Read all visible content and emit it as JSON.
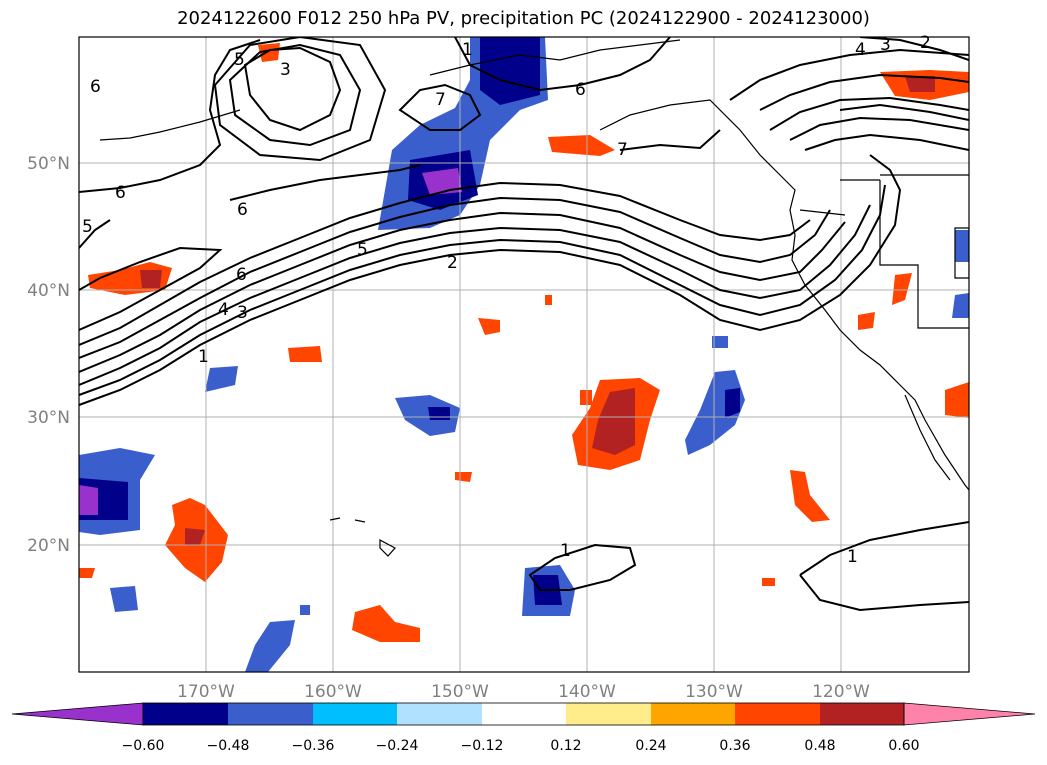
{
  "title": "2024122600 F012 250 hPa PV, precipitation PC (2024122900 - 2024123000)",
  "lat_labels": [
    "50°N",
    "40°N",
    "30°N",
    "20°N"
  ],
  "lon_labels": [
    "170°W",
    "160°W",
    "150°W",
    "140°W",
    "130°W",
    "120°W"
  ],
  "colorbar": {
    "colors": [
      "#9932cc",
      "#00008b",
      "#3a5fcd",
      "#00bfff",
      "#b0e2ff",
      "#ffffff",
      "#ffec8b",
      "#ffa500",
      "#ff4500",
      "#b22222",
      "#ff82ab"
    ],
    "tick_labels": [
      "−0.60",
      "−0.48",
      "−0.36",
      "−0.24",
      "−0.12",
      "0.12",
      "0.24",
      "0.36",
      "0.48",
      "0.60"
    ]
  },
  "contour_labels": [
    "6",
    "5",
    "3",
    "7",
    "1",
    "6",
    "4",
    "3",
    "2",
    "6",
    "6",
    "5",
    "2",
    "6",
    "4",
    "3",
    "1",
    "5",
    "7",
    "1",
    "1"
  ]
}
